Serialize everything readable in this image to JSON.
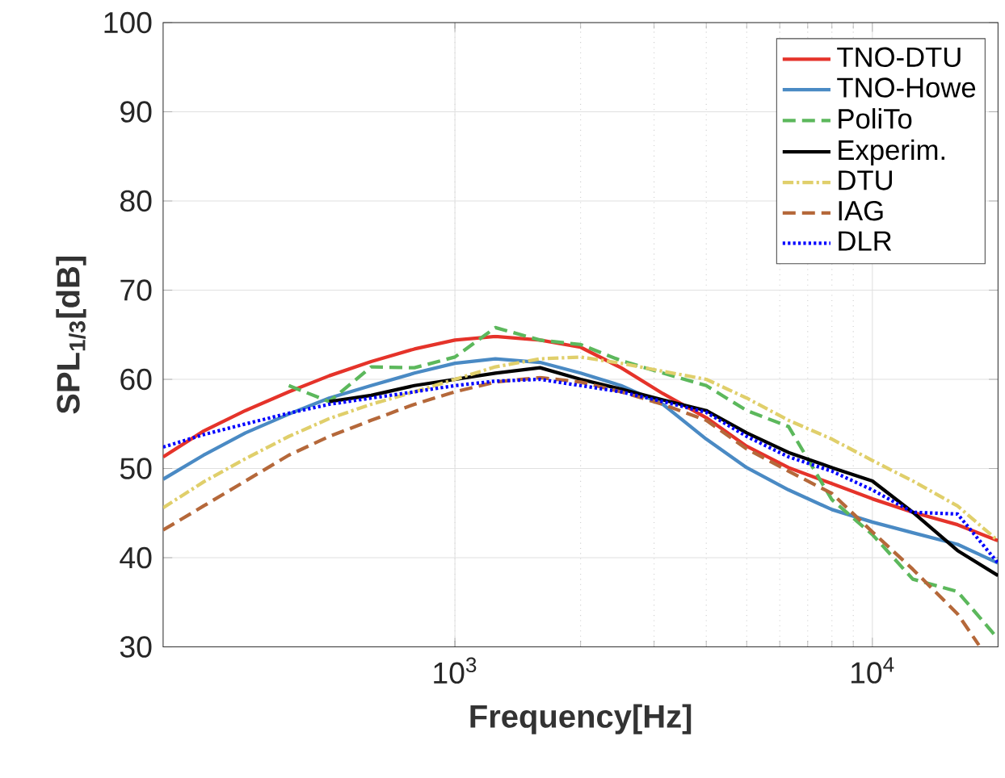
{
  "chart_data": {
    "type": "line",
    "xlabel": "Frequency[Hz]",
    "ylabel": "SPL$_{1/3}$[dB]",
    "log": "x",
    "grid": true,
    "legend": "top right",
    "xlim": [
      200,
      20000
    ],
    "ylim": [
      30,
      100
    ],
    "xticks": [
      {
        "value": 1000,
        "label": "10$^{3}$"
      },
      {
        "value": 10000,
        "label": "10$^{4}$"
      }
    ],
    "yticks": [
      30,
      40,
      50,
      60,
      70,
      80,
      90,
      100
    ],
    "series": [
      {
        "name": "TNO-DTU",
        "color": "#e5332a",
        "line_style": "solid",
        "x": [
          200,
          250,
          315,
          400,
          500,
          630,
          800,
          1000,
          1250,
          1600,
          2000,
          2500,
          3150,
          4000,
          5000,
          6300,
          8000,
          10000,
          12500,
          16000,
          20000
        ],
        "values": [
          51.3,
          54.2,
          56.5,
          58.6,
          60.4,
          62.0,
          63.4,
          64.4,
          64.8,
          64.4,
          63.6,
          61.3,
          58.4,
          55.7,
          52.5,
          50.1,
          48.3,
          46.6,
          45.1,
          43.7,
          41.9
        ]
      },
      {
        "name": "TNO-Howe",
        "color": "#4a8ac4",
        "line_style": "solid",
        "x": [
          200,
          250,
          315,
          400,
          500,
          630,
          800,
          1000,
          1250,
          1600,
          2000,
          2500,
          3150,
          4000,
          5000,
          6300,
          8000,
          10000,
          12500,
          16000,
          20000
        ],
        "values": [
          48.8,
          51.5,
          54.0,
          56.1,
          57.9,
          59.3,
          60.7,
          61.8,
          62.3,
          61.9,
          60.7,
          59.3,
          57.2,
          53.3,
          50.1,
          47.6,
          45.4,
          44.0,
          42.8,
          41.5,
          39.4
        ]
      },
      {
        "name": "PoliTo",
        "color": "#5cb85c",
        "line_style": "dashed",
        "x": [
          400,
          500,
          630,
          800,
          1000,
          1250,
          1600,
          2000,
          2500,
          3150,
          4000,
          5000,
          6300,
          8000,
          10000,
          12500,
          16000,
          20000
        ],
        "values": [
          59.3,
          57.5,
          61.4,
          61.3,
          62.5,
          65.8,
          64.4,
          63.9,
          62.1,
          60.7,
          59.3,
          56.5,
          54.7,
          46.5,
          42.6,
          37.6,
          36.2,
          30.9
        ]
      },
      {
        "name": "Experim.",
        "color": "#000000",
        "line_style": "solid",
        "x": [
          500,
          630,
          800,
          1000,
          1250,
          1600,
          2000,
          2500,
          3150,
          4000,
          5000,
          6300,
          8000,
          10000,
          12500,
          16000,
          20000
        ],
        "values": [
          57.5,
          58.2,
          59.3,
          60.0,
          60.7,
          61.3,
          60.0,
          58.9,
          57.7,
          56.5,
          54.0,
          51.8,
          50.1,
          48.6,
          45.1,
          40.8,
          38.0
        ]
      },
      {
        "name": "DTU",
        "color": "#e0cf6b",
        "line_style": "dashdot",
        "x": [
          200,
          250,
          315,
          400,
          500,
          630,
          800,
          1000,
          1250,
          1600,
          2000,
          2500,
          3150,
          4000,
          5000,
          6300,
          8000,
          10000,
          12500,
          16000,
          20000
        ],
        "values": [
          45.6,
          48.5,
          51.1,
          53.6,
          55.6,
          57.2,
          58.6,
          60.0,
          61.4,
          62.3,
          62.5,
          61.8,
          60.9,
          60.0,
          57.9,
          55.4,
          53.3,
          50.9,
          48.6,
          45.8,
          41.9
        ]
      },
      {
        "name": "IAG",
        "color": "#b5683a",
        "line_style": "dashed",
        "x": [
          200,
          250,
          315,
          400,
          500,
          630,
          800,
          1000,
          1250,
          1600,
          2000,
          2500,
          3150,
          4000,
          5000,
          6300,
          8000,
          10000,
          12500,
          16000,
          18000
        ],
        "values": [
          43.1,
          45.8,
          48.6,
          51.5,
          53.6,
          55.4,
          57.2,
          58.6,
          59.7,
          60.2,
          59.7,
          58.6,
          57.2,
          55.4,
          52.2,
          49.7,
          47.2,
          42.9,
          38.7,
          33.7,
          30.2
        ]
      },
      {
        "name": "DLR",
        "color": "#0000ff",
        "line_style": "dotted",
        "x": [
          200,
          250,
          315,
          400,
          500,
          630,
          800,
          1000,
          1250,
          1600,
          2000,
          2500,
          3150,
          4000,
          5000,
          6300,
          8000,
          10000,
          12500,
          16000,
          20000
        ],
        "values": [
          52.4,
          53.8,
          55.0,
          56.2,
          57.2,
          57.9,
          58.6,
          59.3,
          59.8,
          60.0,
          59.3,
          58.6,
          57.5,
          56.3,
          53.6,
          51.3,
          49.7,
          47.6,
          45.1,
          44.9,
          39.4
        ]
      }
    ]
  }
}
